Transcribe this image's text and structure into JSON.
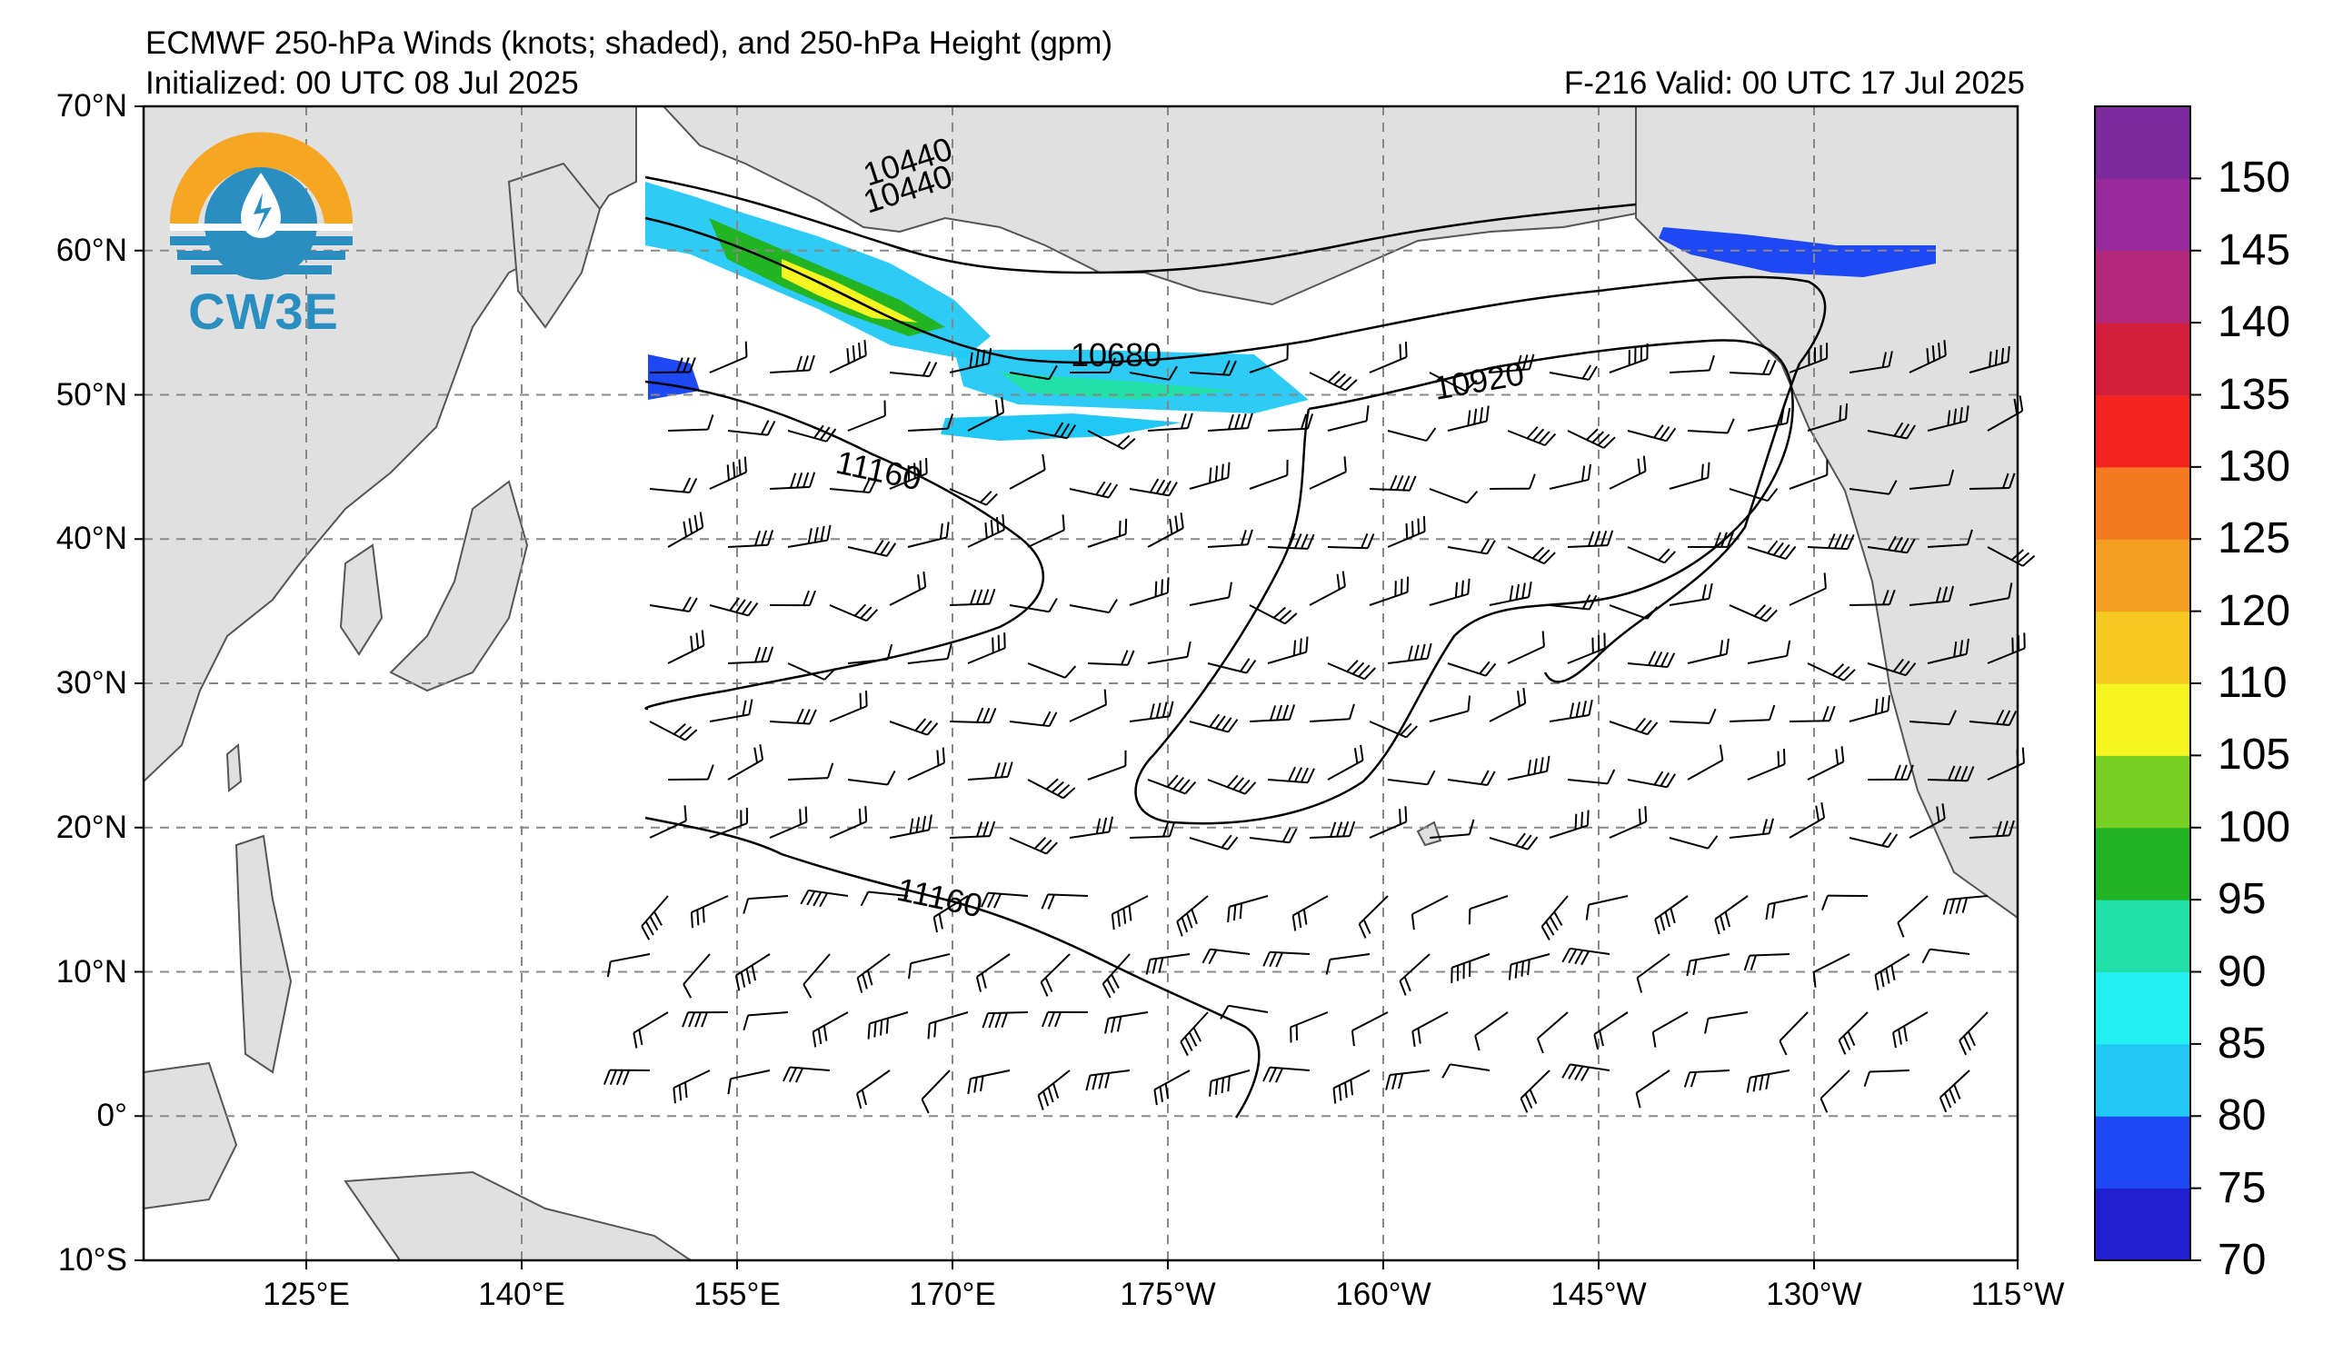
{
  "header": {
    "title": "ECMWF 250-hPa Winds (knots; shaded), and 250-hPa Height (gpm)",
    "initialized": "Initialized: 00 UTC 08 Jul 2025",
    "valid": "F-216  Valid: 00 UTC 17 Jul 2025"
  },
  "logo": {
    "text": "CW3E",
    "colors": {
      "sun": "#f5a623",
      "drop": "#2a8fc0",
      "waves": "#2a8fc0"
    }
  },
  "map": {
    "lat_labels": [
      "70°N",
      "60°N",
      "50°N",
      "40°N",
      "30°N",
      "20°N",
      "10°N",
      "0°",
      "10°S"
    ],
    "lon_labels": [
      "125°E",
      "140°E",
      "155°E",
      "170°E",
      "175°W",
      "160°W",
      "145°W",
      "130°W",
      "115°W"
    ],
    "contour_labels": [
      "10440",
      "10680",
      "10920",
      "11160",
      "11160",
      "10440"
    ],
    "land_color": "#e0e0e0",
    "ocean_color": "#ffffff",
    "grid_color": "#888888"
  },
  "colorbar": {
    "levels": [
      "70",
      "75",
      "80",
      "85",
      "90",
      "95",
      "100",
      "105",
      "110",
      "120",
      "125",
      "130",
      "135",
      "140",
      "145",
      "150"
    ],
    "colors": [
      "#1f1fd0",
      "#1f48f5",
      "#22c8f5",
      "#22f0f0",
      "#22e0a8",
      "#22b422",
      "#78d022",
      "#f5f522",
      "#f5c822",
      "#f5a022",
      "#f57822",
      "#f52222",
      "#d21e3c",
      "#b4287a",
      "#962a9a",
      "#7a2a9a"
    ]
  }
}
